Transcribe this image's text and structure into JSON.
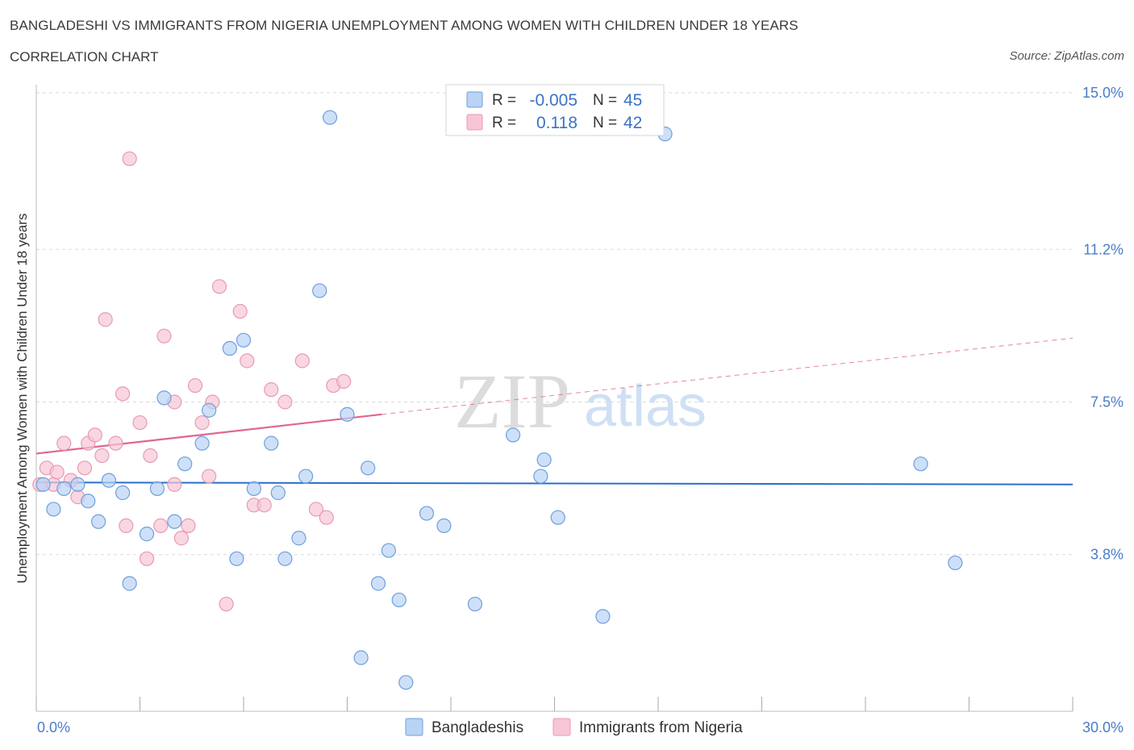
{
  "title": "BANGLADESHI VS IMMIGRANTS FROM NIGERIA UNEMPLOYMENT AMONG WOMEN WITH CHILDREN UNDER 18 YEARS",
  "subtitle": "CORRELATION CHART",
  "source": "Source: ZipAtlas.com",
  "watermark": {
    "zip": "ZIP",
    "atlas": "atlas"
  },
  "colors": {
    "blue_fill": "#b9d3f5",
    "blue_stroke": "#6f9fdc",
    "blue_line": "#2a6fc8",
    "pink_fill": "#f7c6d6",
    "pink_stroke": "#e89ab3",
    "pink_line": "#e0668f",
    "grid": "#d9d9d9",
    "tick_text": "#4a7cc8"
  },
  "legend": {
    "rows": [
      {
        "r_label": "R =",
        "r_value": "-0.005",
        "n_label": "N =",
        "n_value": "45"
      },
      {
        "r_label": "R =",
        "r_value": "0.118",
        "n_label": "N =",
        "n_value": "42"
      }
    ]
  },
  "chart_data": {
    "type": "scatter",
    "title": "BANGLADESHI VS IMMIGRANTS FROM NIGERIA UNEMPLOYMENT AMONG WOMEN WITH CHILDREN UNDER 18 YEARS",
    "xlabel": "",
    "ylabel": "Unemployment Among Women with Children Under 18 years",
    "xlim": [
      0,
      30
    ],
    "ylim": [
      0,
      15
    ],
    "x_tick_labels": [
      "0.0%",
      "30.0%"
    ],
    "y_tick_values": [
      3.8,
      7.5,
      11.2,
      15.0
    ],
    "y_tick_labels": [
      "3.8%",
      "7.5%",
      "11.2%",
      "15.0%"
    ],
    "grid": true,
    "legend_position": "bottom-center",
    "series": [
      {
        "name": "Bangladeshis",
        "R": -0.005,
        "N": 45,
        "trend": {
          "x": [
            0,
            30
          ],
          "y": [
            5.55,
            5.5
          ]
        },
        "points": [
          [
            0.2,
            5.5
          ],
          [
            0.5,
            4.9
          ],
          [
            0.8,
            5.4
          ],
          [
            1.2,
            5.5
          ],
          [
            1.5,
            5.1
          ],
          [
            1.8,
            4.6
          ],
          [
            2.1,
            5.6
          ],
          [
            2.5,
            5.3
          ],
          [
            2.7,
            3.1
          ],
          [
            3.2,
            4.3
          ],
          [
            3.5,
            5.4
          ],
          [
            3.7,
            7.6
          ],
          [
            4.0,
            4.6
          ],
          [
            4.3,
            6.0
          ],
          [
            4.8,
            6.5
          ],
          [
            5.0,
            7.3
          ],
          [
            5.6,
            8.8
          ],
          [
            5.8,
            3.7
          ],
          [
            6.0,
            9.0
          ],
          [
            6.3,
            5.4
          ],
          [
            6.8,
            6.5
          ],
          [
            7.0,
            5.3
          ],
          [
            7.2,
            3.7
          ],
          [
            7.6,
            4.2
          ],
          [
            7.8,
            5.7
          ],
          [
            8.2,
            10.2
          ],
          [
            8.5,
            14.4
          ],
          [
            9.0,
            7.2
          ],
          [
            9.4,
            1.3
          ],
          [
            9.6,
            5.9
          ],
          [
            9.9,
            3.1
          ],
          [
            10.2,
            3.9
          ],
          [
            10.5,
            2.7
          ],
          [
            10.7,
            0.7
          ],
          [
            11.3,
            4.8
          ],
          [
            11.8,
            4.5
          ],
          [
            12.7,
            2.6
          ],
          [
            13.8,
            6.7
          ],
          [
            14.6,
            5.7
          ],
          [
            14.7,
            6.1
          ],
          [
            15.1,
            4.7
          ],
          [
            16.4,
            2.3
          ],
          [
            18.2,
            14.0
          ],
          [
            25.6,
            6.0
          ],
          [
            26.6,
            3.6
          ]
        ]
      },
      {
        "name": "Immigrants from Nigeria",
        "R": 0.118,
        "N": 42,
        "trend": {
          "x": [
            0,
            10
          ],
          "y": [
            6.25,
            7.2
          ]
        },
        "trend_extension": {
          "x": [
            10,
            30
          ],
          "y": [
            7.2,
            9.05
          ]
        },
        "points": [
          [
            0.1,
            5.5
          ],
          [
            0.3,
            5.9
          ],
          [
            0.5,
            5.5
          ],
          [
            0.6,
            5.8
          ],
          [
            0.8,
            6.5
          ],
          [
            1.0,
            5.6
          ],
          [
            1.2,
            5.2
          ],
          [
            1.4,
            5.9
          ],
          [
            1.5,
            6.5
          ],
          [
            1.7,
            6.7
          ],
          [
            1.9,
            6.2
          ],
          [
            2.0,
            9.5
          ],
          [
            2.3,
            6.5
          ],
          [
            2.5,
            7.7
          ],
          [
            2.6,
            4.5
          ],
          [
            2.7,
            13.4
          ],
          [
            3.0,
            7.0
          ],
          [
            3.2,
            3.7
          ],
          [
            3.3,
            6.2
          ],
          [
            3.6,
            4.5
          ],
          [
            3.7,
            9.1
          ],
          [
            4.0,
            7.5
          ],
          [
            4.0,
            5.5
          ],
          [
            4.2,
            4.2
          ],
          [
            4.4,
            4.5
          ],
          [
            4.6,
            7.9
          ],
          [
            4.8,
            7.0
          ],
          [
            5.0,
            5.7
          ],
          [
            5.1,
            7.5
          ],
          [
            5.3,
            10.3
          ],
          [
            5.5,
            2.6
          ],
          [
            5.9,
            9.7
          ],
          [
            6.1,
            8.5
          ],
          [
            6.3,
            5.0
          ],
          [
            6.6,
            5.0
          ],
          [
            6.8,
            7.8
          ],
          [
            7.2,
            7.5
          ],
          [
            7.7,
            8.5
          ],
          [
            8.1,
            4.9
          ],
          [
            8.4,
            4.7
          ],
          [
            8.6,
            7.9
          ],
          [
            8.9,
            8.0
          ]
        ]
      }
    ]
  }
}
